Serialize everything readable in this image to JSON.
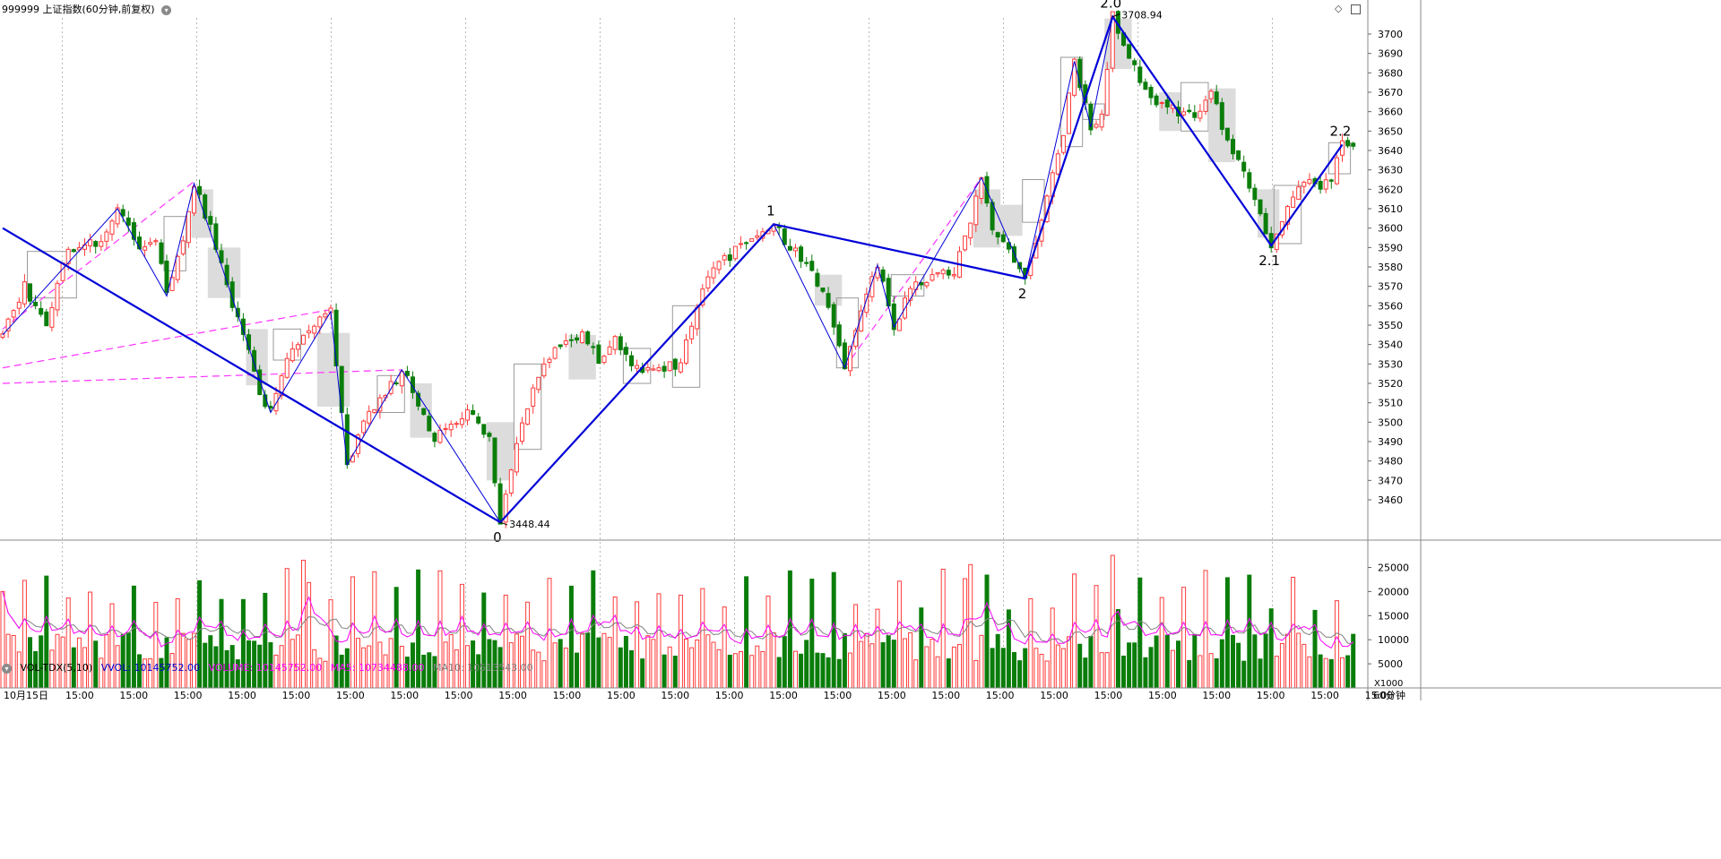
{
  "title": {
    "code_name": "999999 上证指数(60分钟,前复权)",
    "dropdown_icon": "chevron-down-icon"
  },
  "toolbar_icons": [
    "diamond-icon",
    "window-icon"
  ],
  "period_label": "60分钟",
  "volume_header": {
    "indicator": "VOL-TDX(5,10)",
    "vvol": "VVOL: 10145752.00",
    "volume": "VOLUME: 10145752.00",
    "ma5": "MA5: 10734488.00",
    "ma10": "MA10: 10513543.00",
    "multiplier": "X1000"
  },
  "colors": {
    "up": "#ff3b3b",
    "down": "#0a7d0a",
    "wave": "#0000d8",
    "channel": "#ff33ff",
    "ma5": "#ff00ff",
    "ma10": "#808080",
    "grid": "#b8b8b8",
    "box": "#c8c8c8"
  },
  "chart_data": [
    {
      "type": "candlestick",
      "price_axis": {
        "min": 3450,
        "max": 3705,
        "ticks": [
          3460,
          3470,
          3480,
          3490,
          3500,
          3510,
          3520,
          3530,
          3540,
          3550,
          3560,
          3570,
          3580,
          3590,
          3600,
          3610,
          3620,
          3630,
          3640,
          3650,
          3660,
          3670,
          3680,
          3690,
          3700
        ]
      },
      "x_labels": [
        "10月15日",
        "15:00",
        "15:00",
        "15:00",
        "15:00",
        "15:00",
        "15:00",
        "15:00",
        "15:00",
        "15:00",
        "15:00",
        "15:00",
        "15:00",
        "15:00",
        "15:00",
        "15:00",
        "15:00",
        "15:00",
        "15:00",
        "15:00",
        "15:00",
        "15:00",
        "15:00",
        "15:00",
        "15:00",
        "15:00"
      ],
      "wave_labels": [
        {
          "text": "0",
          "bar": 91,
          "price": 3448.4
        },
        {
          "text": "1",
          "bar": 141,
          "price": 3602
        },
        {
          "text": "2",
          "bar": 187,
          "price": 3574
        },
        {
          "text": "2.0",
          "bar": 203,
          "price": 3708.9
        },
        {
          "text": "2.1",
          "bar": 232,
          "price": 3591
        },
        {
          "text": "2.2",
          "bar": 245,
          "price": 3643
        }
      ],
      "extremes": [
        {
          "text": "3448.44",
          "bar": 91,
          "price": 3448.44
        },
        {
          "text": "3708.94",
          "bar": 203,
          "price": 3708.94
        }
      ],
      "wave_main": [
        [
          0,
          3600
        ],
        [
          91,
          3448.4
        ],
        [
          141,
          3602
        ],
        [
          187,
          3574
        ],
        [
          203,
          3708.9
        ],
        [
          232,
          3591
        ],
        [
          245,
          3643
        ]
      ],
      "wave_sub": [
        [
          0,
          3545
        ],
        [
          21,
          3610
        ],
        [
          30,
          3565
        ],
        [
          35,
          3623
        ],
        [
          49,
          3505
        ],
        [
          60,
          3557
        ],
        [
          63,
          3478
        ],
        [
          73,
          3527
        ],
        [
          91,
          3448.4
        ],
        [
          141,
          3602
        ],
        [
          154,
          3528
        ],
        [
          160,
          3581
        ],
        [
          163,
          3549
        ],
        [
          179,
          3626
        ],
        [
          187,
          3574
        ],
        [
          196,
          3686
        ],
        [
          199,
          3652
        ],
        [
          203,
          3708.9
        ],
        [
          232,
          3591
        ],
        [
          245,
          3643
        ]
      ],
      "channels": [
        [
          [
            0,
            3520
          ],
          [
            73,
            3527
          ]
        ],
        [
          [
            0,
            3528
          ],
          [
            60,
            3558
          ]
        ],
        [
          [
            0,
            3548
          ],
          [
            35,
            3624
          ]
        ],
        [
          [
            154,
            3528
          ],
          [
            179,
            3626
          ]
        ]
      ],
      "boxes": [
        {
          "from": 5,
          "to": 13,
          "low": 3564,
          "high": 3588,
          "filled": false
        },
        {
          "from": 30,
          "to": 33,
          "low": 3578,
          "high": 3606,
          "filled": false
        },
        {
          "from": 35,
          "to": 38,
          "low": 3595,
          "high": 3620,
          "filled": true
        },
        {
          "from": 38,
          "to": 43,
          "low": 3564,
          "high": 3590,
          "filled": true
        },
        {
          "from": 45,
          "to": 48,
          "low": 3519,
          "high": 3548,
          "filled": true
        },
        {
          "from": 50,
          "to": 54,
          "low": 3532,
          "high": 3548,
          "filled": false
        },
        {
          "from": 58,
          "to": 63,
          "low": 3508,
          "high": 3546,
          "filled": true
        },
        {
          "from": 69,
          "to": 73,
          "low": 3505,
          "high": 3524,
          "filled": false
        },
        {
          "from": 75,
          "to": 78,
          "low": 3492,
          "high": 3520,
          "filled": true
        },
        {
          "from": 89,
          "to": 93,
          "low": 3470,
          "high": 3500,
          "filled": true
        },
        {
          "from": 94,
          "to": 98,
          "low": 3486,
          "high": 3530,
          "filled": false
        },
        {
          "from": 104,
          "to": 108,
          "low": 3522,
          "high": 3545,
          "filled": true
        },
        {
          "from": 114,
          "to": 118,
          "low": 3520,
          "high": 3538,
          "filled": false
        },
        {
          "from": 123,
          "to": 127,
          "low": 3518,
          "high": 3560,
          "filled": false
        },
        {
          "from": 149,
          "to": 153,
          "low": 3560,
          "high": 3576,
          "filled": true
        },
        {
          "from": 153,
          "to": 156,
          "low": 3528,
          "high": 3564,
          "filled": false
        },
        {
          "from": 163,
          "to": 168,
          "low": 3565,
          "high": 3576,
          "filled": false
        },
        {
          "from": 178,
          "to": 182,
          "low": 3590,
          "high": 3620,
          "filled": true
        },
        {
          "from": 182,
          "to": 186,
          "low": 3596,
          "high": 3612,
          "filled": true
        },
        {
          "from": 187,
          "to": 190,
          "low": 3603,
          "high": 3625,
          "filled": false
        },
        {
          "from": 194,
          "to": 197,
          "low": 3642,
          "high": 3688,
          "filled": false
        },
        {
          "from": 198,
          "to": 201,
          "low": 3656,
          "high": 3664,
          "filled": false
        },
        {
          "from": 202,
          "to": 206,
          "low": 3682,
          "high": 3708,
          "filled": true
        },
        {
          "from": 212,
          "to": 215,
          "low": 3650,
          "high": 3670,
          "filled": true
        },
        {
          "from": 216,
          "to": 220,
          "low": 3650,
          "high": 3675,
          "filled": false
        },
        {
          "from": 221,
          "to": 225,
          "low": 3634,
          "high": 3672,
          "filled": true
        },
        {
          "from": 230,
          "to": 233,
          "low": 3595,
          "high": 3620,
          "filled": true
        },
        {
          "from": 233,
          "to": 237,
          "low": 3592,
          "high": 3622,
          "filled": false
        },
        {
          "from": 243,
          "to": 246,
          "low": 3628,
          "high": 3644,
          "filled": false
        }
      ],
      "anchors": [
        [
          0,
          3545
        ],
        [
          4,
          3570
        ],
        [
          8,
          3550
        ],
        [
          12,
          3590
        ],
        [
          15,
          3592
        ],
        [
          18,
          3592
        ],
        [
          21,
          3610
        ],
        [
          25,
          3590
        ],
        [
          28,
          3595
        ],
        [
          30,
          3565
        ],
        [
          33,
          3596
        ],
        [
          35,
          3623
        ],
        [
          38,
          3600
        ],
        [
          41,
          3570
        ],
        [
          44,
          3545
        ],
        [
          47,
          3515
        ],
        [
          49,
          3505
        ],
        [
          52,
          3532
        ],
        [
          56,
          3548
        ],
        [
          60,
          3557
        ],
        [
          61,
          3530
        ],
        [
          63,
          3478
        ],
        [
          66,
          3500
        ],
        [
          69,
          3510
        ],
        [
          73,
          3527
        ],
        [
          76,
          3510
        ],
        [
          79,
          3492
        ],
        [
          83,
          3502
        ],
        [
          86,
          3505
        ],
        [
          89,
          3490
        ],
        [
          91,
          3448.4
        ],
        [
          94,
          3488
        ],
        [
          97,
          3520
        ],
        [
          100,
          3535
        ],
        [
          103,
          3540
        ],
        [
          106,
          3545
        ],
        [
          109,
          3533
        ],
        [
          112,
          3542
        ],
        [
          115,
          3530
        ],
        [
          118,
          3526
        ],
        [
          121,
          3528
        ],
        [
          124,
          3530
        ],
        [
          127,
          3560
        ],
        [
          130,
          3580
        ],
        [
          134,
          3588
        ],
        [
          137,
          3597
        ],
        [
          141,
          3602
        ],
        [
          144,
          3590
        ],
        [
          147,
          3582
        ],
        [
          150,
          3568
        ],
        [
          154,
          3528
        ],
        [
          157,
          3555
        ],
        [
          160,
          3581
        ],
        [
          163,
          3549
        ],
        [
          166,
          3568
        ],
        [
          170,
          3575
        ],
        [
          174,
          3577
        ],
        [
          177,
          3602
        ],
        [
          179,
          3626
        ],
        [
          181,
          3600
        ],
        [
          184,
          3590
        ],
        [
          187,
          3574
        ],
        [
          190,
          3605
        ],
        [
          194,
          3650
        ],
        [
          196,
          3686
        ],
        [
          199,
          3652
        ],
        [
          201,
          3660
        ],
        [
          203,
          3708.9
        ],
        [
          206,
          3690
        ],
        [
          209,
          3670
        ],
        [
          212,
          3664
        ],
        [
          215,
          3660
        ],
        [
          218,
          3658
        ],
        [
          221,
          3670
        ],
        [
          224,
          3645
        ],
        [
          227,
          3630
        ],
        [
          230,
          3605
        ],
        [
          232,
          3591
        ],
        [
          235,
          3612
        ],
        [
          238,
          3625
        ],
        [
          241,
          3622
        ],
        [
          243,
          3625
        ],
        [
          245,
          3643
        ]
      ]
    },
    {
      "type": "volume",
      "y_axis": {
        "min": 0,
        "max": 29000,
        "ticks": [
          5000,
          10000,
          15000,
          20000,
          25000
        ]
      },
      "series": [
        {
          "name": "VOLUME",
          "values": []
        },
        {
          "name": "MA5",
          "values": []
        },
        {
          "name": "MA10",
          "values": []
        }
      ]
    }
  ]
}
